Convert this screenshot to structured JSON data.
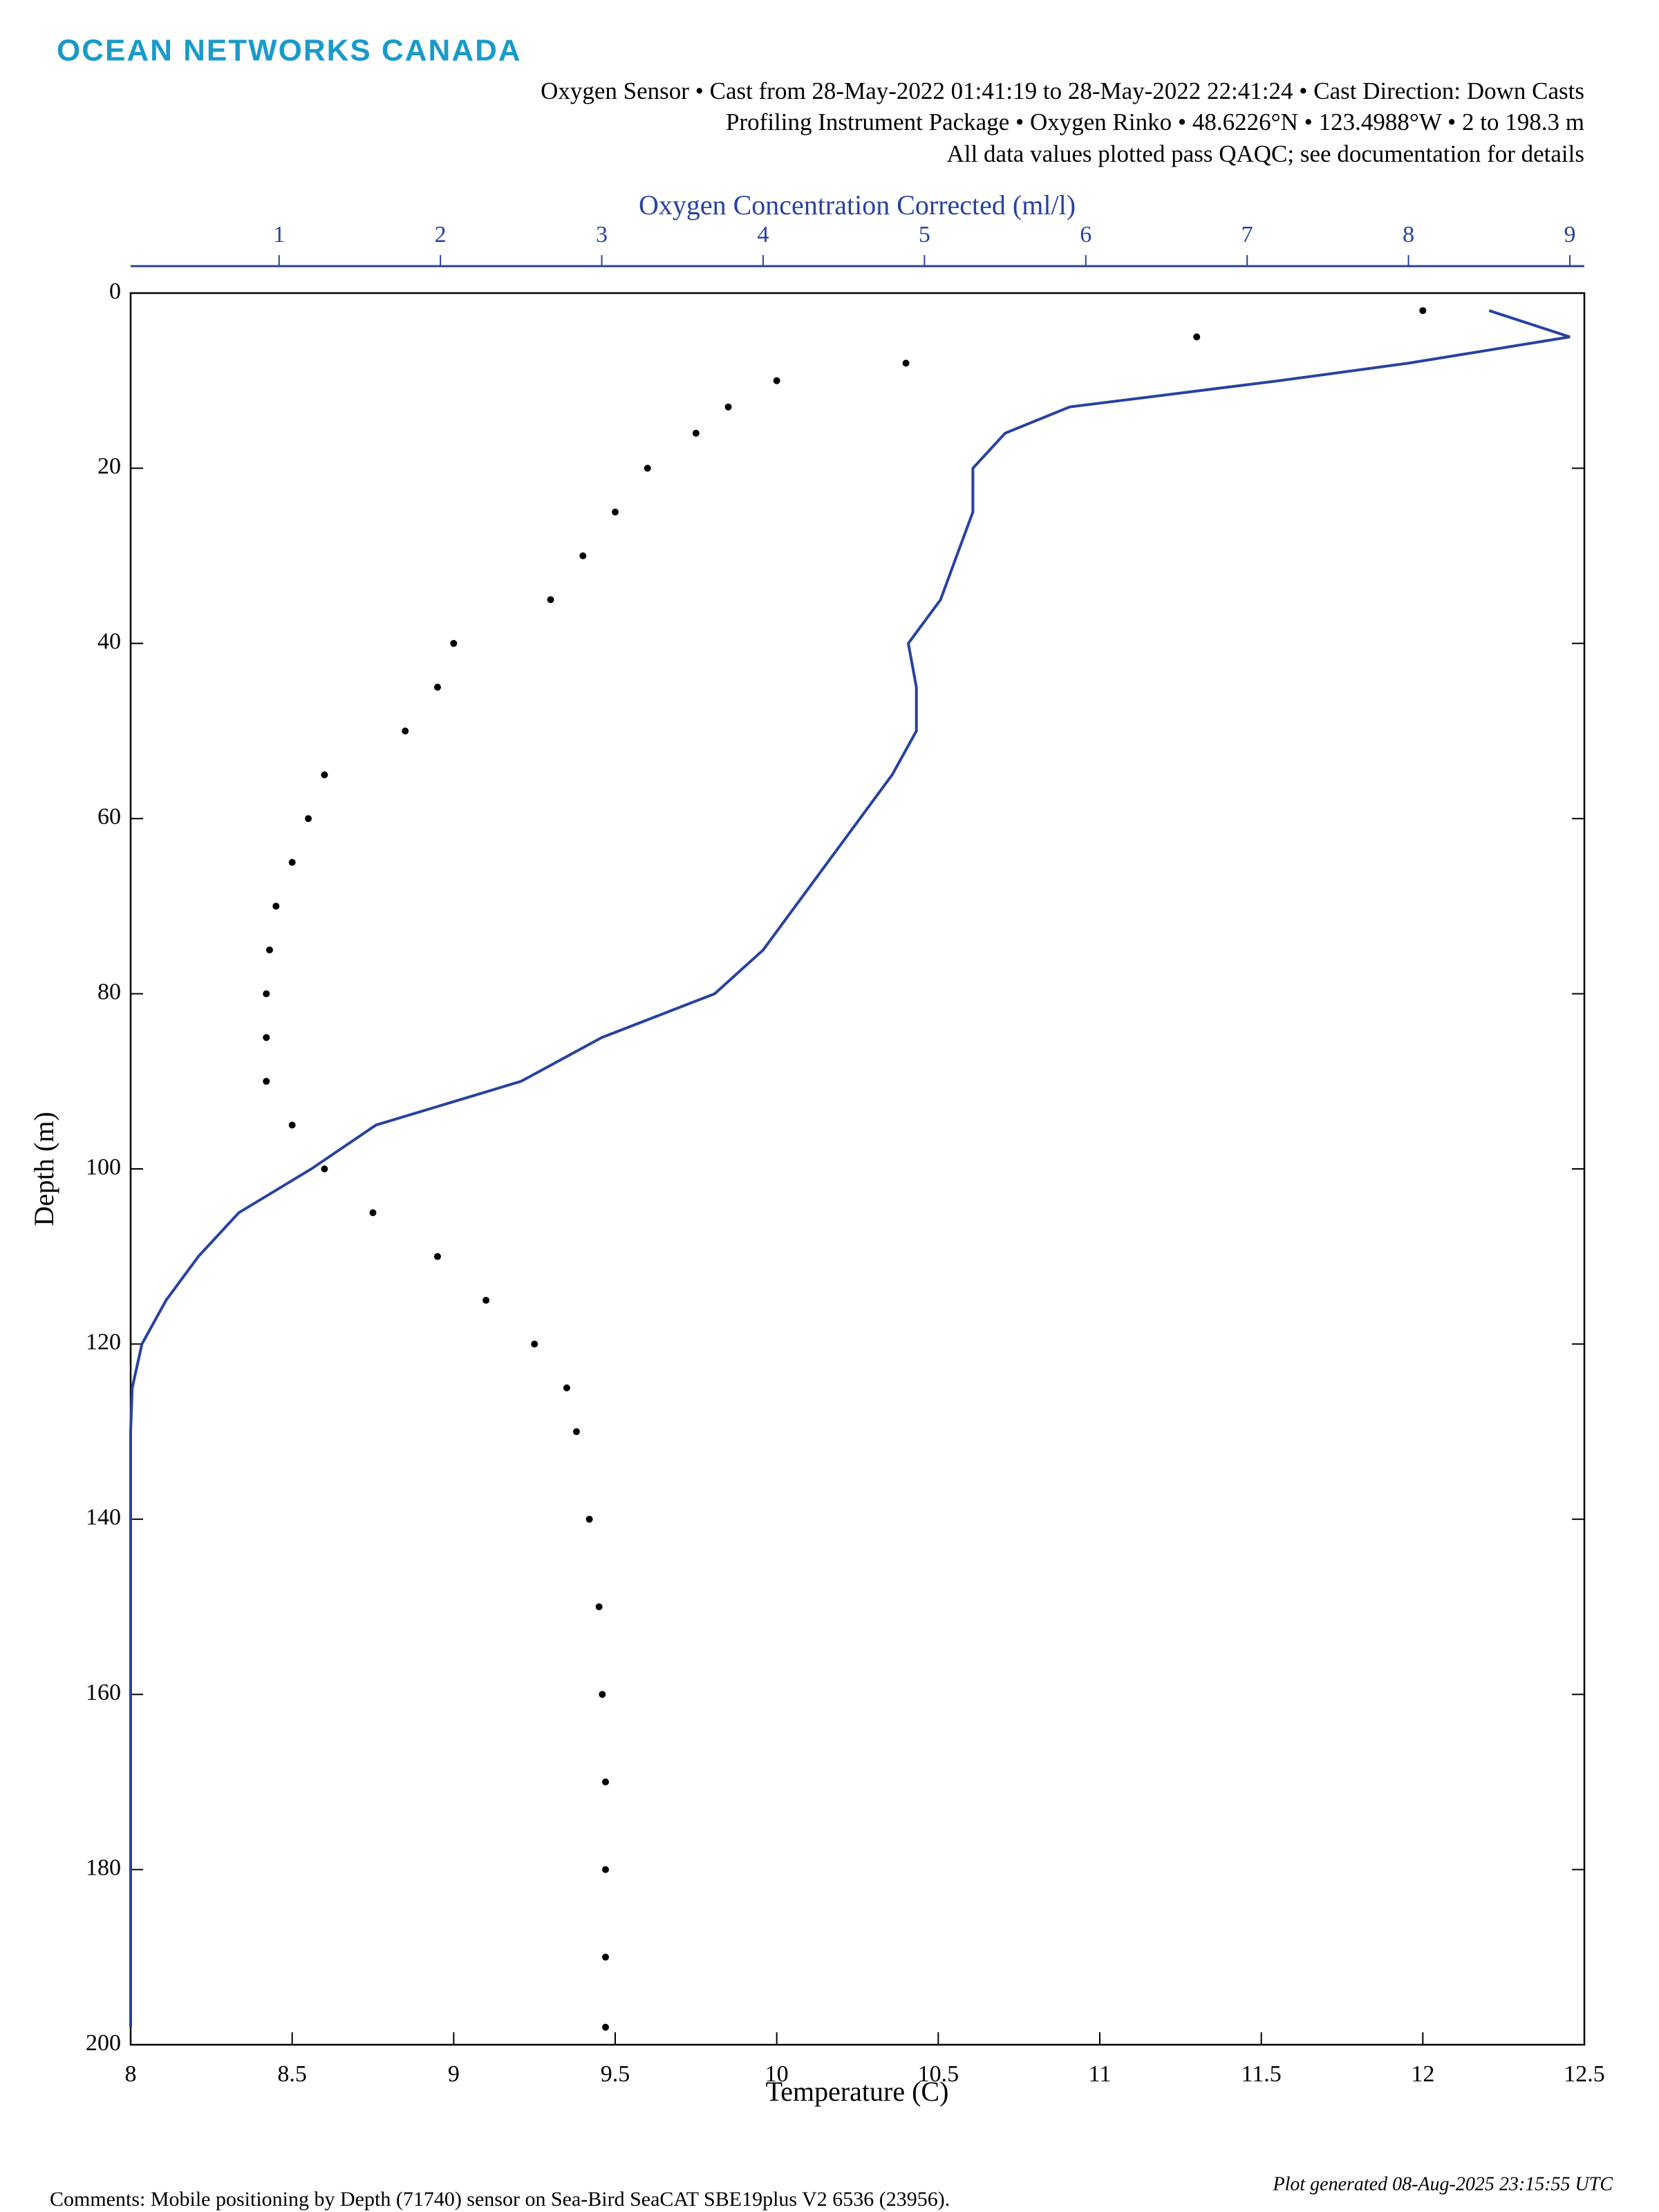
{
  "header": {
    "brand": "OCEAN NETWORKS CANADA",
    "lines": [
      "Oxygen Sensor • Cast from 28-May-2022 01:41:19 to 28-May-2022 22:41:24 • Cast Direction: Down Casts",
      "Profiling Instrument Package • Oxygen Rinko • 48.6226°N • 123.4988°W • 2 to 198.3 m",
      "All data values plotted pass QAQC; see documentation for details"
    ]
  },
  "chart_data": {
    "type": "profile",
    "xlabel": "Temperature (C)",
    "x2label": "Oxygen Concentration Corrected (ml/l)",
    "ylabel": "Depth (m)",
    "depth": [
      2,
      5,
      8,
      10,
      13,
      16,
      20,
      25,
      30,
      35,
      40,
      45,
      50,
      55,
      60,
      65,
      70,
      75,
      80,
      85,
      90,
      95,
      100,
      105,
      110,
      115,
      120,
      125,
      130,
      140,
      150,
      160,
      170,
      180,
      190,
      198
    ],
    "series": [
      {
        "name": "Temperature",
        "color": "#000000",
        "style": "markers",
        "axis": "x",
        "values": [
          12.0,
          11.3,
          10.4,
          10.0,
          9.85,
          9.75,
          9.6,
          9.5,
          9.4,
          9.3,
          9.0,
          8.95,
          8.85,
          8.6,
          8.55,
          8.5,
          8.45,
          8.43,
          8.42,
          8.42,
          8.42,
          8.5,
          8.6,
          8.75,
          8.95,
          9.1,
          9.25,
          9.35,
          9.38,
          9.42,
          9.45,
          9.46,
          9.47,
          9.47,
          9.47,
          9.47
        ]
      },
      {
        "name": "Oxygen",
        "color": "#2742a0",
        "style": "line",
        "axis": "x2",
        "values": [
          8.5,
          9.0,
          8.0,
          7.2,
          5.9,
          5.5,
          5.3,
          5.3,
          5.2,
          5.1,
          4.9,
          4.95,
          4.95,
          4.8,
          4.6,
          4.4,
          4.2,
          4.0,
          3.7,
          3.0,
          2.5,
          1.6,
          1.2,
          0.75,
          0.5,
          0.3,
          0.15,
          0.09,
          0.08,
          0.08,
          0.08,
          0.08,
          0.08,
          0.08,
          0.08,
          0.08
        ]
      }
    ],
    "xlim": [
      8,
      12.5
    ],
    "xticks": [
      8,
      8.5,
      9,
      9.5,
      10,
      10.5,
      11,
      11.5,
      12,
      12.5
    ],
    "x2lim": [
      0.08,
      9.09
    ],
    "x2ticks": [
      1,
      2,
      3,
      4,
      5,
      6,
      7,
      8,
      9
    ],
    "ylim": [
      0,
      200
    ],
    "yticks": [
      0,
      20,
      40,
      60,
      80,
      100,
      120,
      140,
      160,
      180,
      200
    ],
    "y_reversed": true,
    "grid": false
  },
  "footer": {
    "comments": "Comments: Mobile positioning by Depth (71740) sensor on Sea-Bird SeaCAT SBE19plus V2 6536 (23956).",
    "generated": "Plot generated 08-Aug-2025 23:15:55 UTC"
  }
}
